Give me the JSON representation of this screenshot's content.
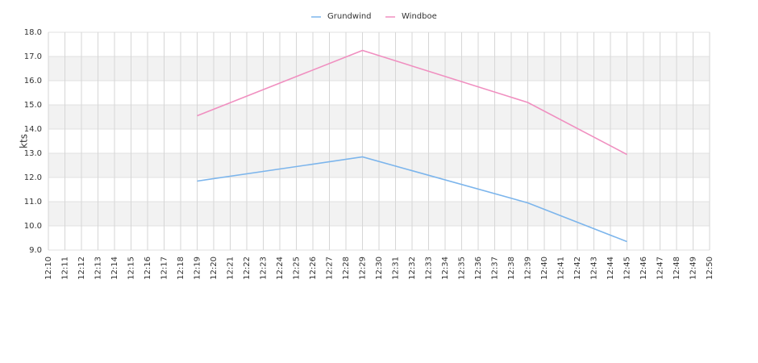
{
  "chart_data": {
    "type": "line",
    "y_label": "kts",
    "categories": [
      "12:10",
      "12:11",
      "12:12",
      "12:13",
      "12:14",
      "12:15",
      "12:16",
      "12:17",
      "12:18",
      "12:19",
      "12:20",
      "12:21",
      "12:22",
      "12:23",
      "12:24",
      "12:25",
      "12:26",
      "12:27",
      "12:28",
      "12:29",
      "12:30",
      "12:31",
      "12:32",
      "12:33",
      "12:34",
      "12:35",
      "12:36",
      "12:37",
      "12:38",
      "12:39",
      "12:40",
      "12:41",
      "12:42",
      "12:43",
      "12:44",
      "12:45",
      "12:46",
      "12:47",
      "12:48",
      "12:49",
      "12:50"
    ],
    "series": [
      {
        "name": "Grundwind",
        "color": "#7cb5ec",
        "x": [
          "12:19",
          "12:29",
          "12:39",
          "12:45"
        ],
        "values": [
          11.85,
          12.85,
          10.95,
          9.35
        ]
      },
      {
        "name": "Windboe",
        "color": "#f08fc0",
        "x": [
          "12:19",
          "12:29",
          "12:39",
          "12:45"
        ],
        "values": [
          14.55,
          17.25,
          15.1,
          12.95
        ]
      }
    ],
    "ylim": [
      9,
      18
    ],
    "yticks": [
      {
        "value": 9,
        "label": "9.0"
      },
      {
        "value": 10,
        "label": "10.0"
      },
      {
        "value": 11,
        "label": "11.0"
      },
      {
        "value": 12,
        "label": "12.0"
      },
      {
        "value": 13,
        "label": "13.0"
      },
      {
        "value": 14,
        "label": "14.0"
      },
      {
        "value": 15,
        "label": "15.0"
      },
      {
        "value": 16,
        "label": "16.0"
      },
      {
        "value": 17,
        "label": "17.0"
      },
      {
        "value": 18,
        "label": "18.0"
      }
    ],
    "grid": true,
    "legend": "top"
  }
}
